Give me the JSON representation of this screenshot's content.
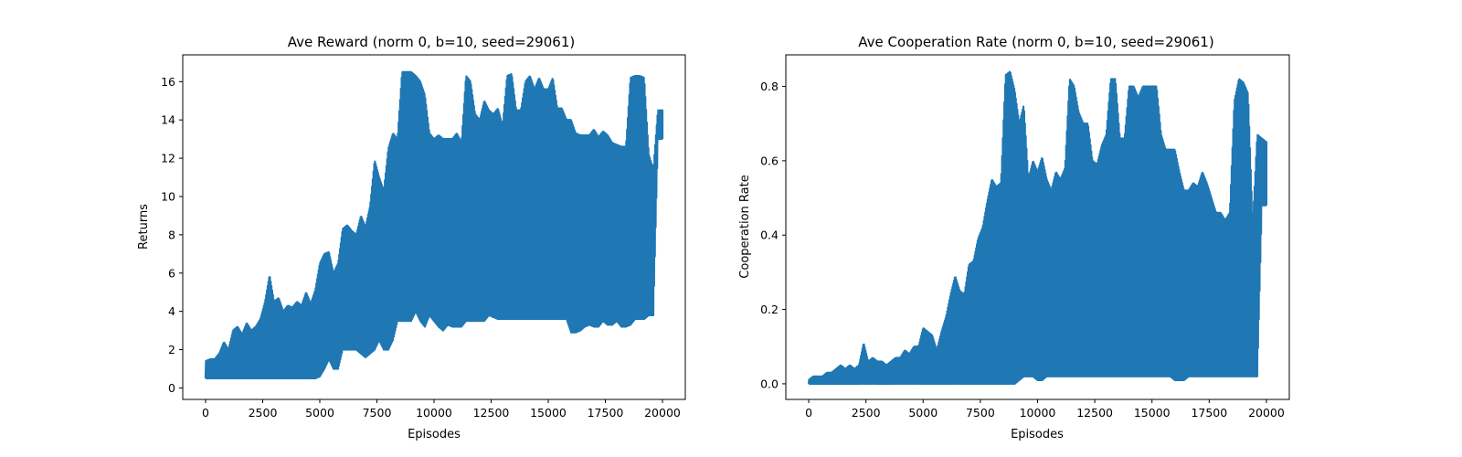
{
  "chart_data": [
    {
      "type": "line",
      "title": "Ave Reward (norm 0, b=10, seed=29061)",
      "xlabel": "Episodes",
      "ylabel": "Returns",
      "xlim": [
        -1000,
        21000
      ],
      "ylim": [
        -0.6,
        17.4
      ],
      "xticks": [
        0,
        2500,
        5000,
        7500,
        10000,
        12500,
        15000,
        17500,
        20000
      ],
      "yticks": [
        0,
        2,
        4,
        6,
        8,
        10,
        12,
        14,
        16
      ],
      "ytick_labels": [
        "0",
        "2",
        "4",
        "6",
        "8",
        "10",
        "12",
        "14",
        "16"
      ],
      "grid": false,
      "color": "#1f77b4",
      "series": [
        {
          "x": [
            0,
            200,
            400,
            600,
            800,
            1000,
            1200,
            1400,
            1600,
            1800,
            2000,
            2200,
            2400,
            2600,
            2800,
            3000,
            3200,
            3400,
            3600,
            3800,
            4000,
            4200,
            4400,
            4600,
            4800,
            5000,
            5200,
            5400,
            5600,
            5800,
            6000,
            6200,
            6400,
            6600,
            6800,
            7000,
            7200,
            7400,
            7600,
            7800,
            8000,
            8200,
            8400,
            8600,
            8800,
            9000,
            9200,
            9400,
            9600,
            9800,
            10000,
            10200,
            10400,
            10600,
            10800,
            11000,
            11200,
            11400,
            11600,
            11800,
            12000,
            12200,
            12400,
            12600,
            12800,
            13000,
            13200,
            13400,
            13600,
            13800,
            14000,
            14200,
            14400,
            14600,
            14800,
            15000,
            15200,
            15400,
            15600,
            15800,
            16000,
            16200,
            16400,
            16600,
            16800,
            17000,
            17200,
            17400,
            17600,
            17800,
            18000,
            18200,
            18400,
            18600,
            18800,
            19000,
            19200,
            19400,
            19600,
            19800,
            20000
          ],
          "y_min": [
            0.5,
            0.5,
            0.5,
            0.5,
            0.5,
            0.5,
            0.5,
            0.5,
            0.5,
            0.5,
            0.5,
            0.5,
            0.5,
            0.5,
            0.5,
            0.5,
            0.5,
            0.5,
            0.5,
            0.5,
            0.5,
            0.5,
            0.5,
            0.5,
            0.5,
            0.6,
            1.0,
            1.5,
            1.0,
            1.0,
            2.0,
            2.0,
            2.0,
            2.0,
            1.8,
            1.6,
            1.8,
            2.0,
            2.5,
            2.0,
            2.0,
            2.5,
            3.5,
            3.5,
            3.5,
            3.5,
            4.0,
            3.5,
            3.2,
            3.8,
            3.5,
            3.2,
            3.0,
            3.3,
            3.2,
            3.2,
            3.2,
            3.5,
            3.5,
            3.5,
            3.5,
            3.5,
            3.8,
            3.7,
            3.6,
            3.6,
            3.6,
            3.6,
            3.6,
            3.6,
            3.6,
            3.6,
            3.6,
            3.6,
            3.6,
            3.6,
            3.6,
            3.6,
            3.6,
            3.6,
            2.9,
            2.9,
            3.0,
            3.2,
            3.3,
            3.2,
            3.2,
            3.5,
            3.3,
            3.3,
            3.5,
            3.2,
            3.2,
            3.3,
            3.6,
            3.6,
            3.6,
            3.8,
            3.8,
            13.0,
            13.0
          ],
          "y_max": [
            1.4,
            1.5,
            1.5,
            1.8,
            2.4,
            2.0,
            3.0,
            3.2,
            2.8,
            3.4,
            3.0,
            3.2,
            3.6,
            4.5,
            5.9,
            4.5,
            4.7,
            4.0,
            4.3,
            4.2,
            4.5,
            4.3,
            5.0,
            4.4,
            5.1,
            6.5,
            7.0,
            7.1,
            6.0,
            6.5,
            8.3,
            8.5,
            8.2,
            8.0,
            9.0,
            8.4,
            9.5,
            11.9,
            11.0,
            10.3,
            12.5,
            13.3,
            13.0,
            16.5,
            16.5,
            16.5,
            16.3,
            16.0,
            15.3,
            13.3,
            13.0,
            13.2,
            13.0,
            13.0,
            13.0,
            13.3,
            12.8,
            16.3,
            16.0,
            14.3,
            14.0,
            15.0,
            14.5,
            14.3,
            14.6,
            13.7,
            16.3,
            16.4,
            14.5,
            14.5,
            16.0,
            16.3,
            15.6,
            16.2,
            15.6,
            15.6,
            16.2,
            14.6,
            14.6,
            14.0,
            14.0,
            13.3,
            13.2,
            13.2,
            13.2,
            13.5,
            13.1,
            13.4,
            13.2,
            12.8,
            12.7,
            12.6,
            12.6,
            16.2,
            16.3,
            16.3,
            16.2,
            12.2,
            11.4,
            14.5,
            14.5
          ]
        }
      ]
    },
    {
      "type": "line",
      "title": "Ave Cooperation Rate (norm 0, b=10, seed=29061)",
      "xlabel": "Episodes",
      "ylabel": "Cooperation Rate",
      "xlim": [
        -1000,
        21000
      ],
      "ylim": [
        -0.042,
        0.885
      ],
      "xticks": [
        0,
        2500,
        5000,
        7500,
        10000,
        12500,
        15000,
        17500,
        20000
      ],
      "yticks": [
        0.0,
        0.2,
        0.4,
        0.6,
        0.8
      ],
      "ytick_labels": [
        "0.0",
        "0.2",
        "0.4",
        "0.6",
        "0.8"
      ],
      "grid": false,
      "color": "#1f77b4",
      "series": [
        {
          "x": [
            0,
            200,
            400,
            600,
            800,
            1000,
            1200,
            1400,
            1600,
            1800,
            2000,
            2200,
            2400,
            2600,
            2800,
            3000,
            3200,
            3400,
            3600,
            3800,
            4000,
            4200,
            4400,
            4600,
            4800,
            5000,
            5200,
            5400,
            5600,
            5800,
            6000,
            6200,
            6400,
            6600,
            6800,
            7000,
            7200,
            7400,
            7600,
            7800,
            8000,
            8200,
            8400,
            8600,
            8800,
            9000,
            9200,
            9400,
            9600,
            9800,
            10000,
            10200,
            10400,
            10600,
            10800,
            11000,
            11200,
            11400,
            11600,
            11800,
            12000,
            12200,
            12400,
            12600,
            12800,
            13000,
            13200,
            13400,
            13600,
            13800,
            14000,
            14200,
            14400,
            14600,
            14800,
            15000,
            15200,
            15400,
            15600,
            15800,
            16000,
            16200,
            16400,
            16600,
            16800,
            17000,
            17200,
            17400,
            17600,
            17800,
            18000,
            18200,
            18400,
            18600,
            18800,
            19000,
            19200,
            19400,
            19600,
            19800,
            20000
          ],
          "y_min": [
            0.0,
            0.0,
            0.0,
            0.0,
            0.0,
            0.0,
            0.0,
            0.0,
            0.0,
            0.0,
            0.0,
            0.0,
            0.0,
            0.0,
            0.0,
            0.0,
            0.0,
            0.0,
            0.0,
            0.0,
            0.0,
            0.0,
            0.0,
            0.0,
            0.0,
            0.0,
            0.0,
            0.0,
            0.0,
            0.0,
            0.0,
            0.0,
            0.0,
            0.0,
            0.0,
            0.0,
            0.0,
            0.0,
            0.0,
            0.0,
            0.0,
            0.0,
            0.0,
            0.0,
            0.0,
            0.0,
            0.01,
            0.02,
            0.02,
            0.02,
            0.01,
            0.01,
            0.02,
            0.02,
            0.02,
            0.02,
            0.02,
            0.02,
            0.02,
            0.02,
            0.02,
            0.02,
            0.02,
            0.02,
            0.02,
            0.02,
            0.02,
            0.02,
            0.02,
            0.02,
            0.02,
            0.02,
            0.02,
            0.02,
            0.02,
            0.02,
            0.02,
            0.02,
            0.02,
            0.02,
            0.01,
            0.01,
            0.01,
            0.02,
            0.02,
            0.02,
            0.02,
            0.02,
            0.02,
            0.02,
            0.02,
            0.02,
            0.02,
            0.02,
            0.02,
            0.02,
            0.02,
            0.02,
            0.02,
            0.48,
            0.48
          ],
          "y_max": [
            0.01,
            0.02,
            0.02,
            0.02,
            0.03,
            0.03,
            0.04,
            0.05,
            0.04,
            0.05,
            0.04,
            0.05,
            0.11,
            0.06,
            0.07,
            0.06,
            0.06,
            0.05,
            0.06,
            0.07,
            0.07,
            0.09,
            0.08,
            0.1,
            0.1,
            0.15,
            0.14,
            0.13,
            0.09,
            0.14,
            0.18,
            0.24,
            0.29,
            0.25,
            0.24,
            0.32,
            0.33,
            0.39,
            0.42,
            0.49,
            0.55,
            0.53,
            0.54,
            0.83,
            0.84,
            0.79,
            0.7,
            0.75,
            0.55,
            0.6,
            0.57,
            0.61,
            0.55,
            0.52,
            0.57,
            0.55,
            0.58,
            0.82,
            0.8,
            0.73,
            0.7,
            0.7,
            0.6,
            0.59,
            0.64,
            0.67,
            0.82,
            0.82,
            0.66,
            0.66,
            0.8,
            0.8,
            0.77,
            0.8,
            0.8,
            0.8,
            0.8,
            0.67,
            0.63,
            0.63,
            0.63,
            0.57,
            0.52,
            0.52,
            0.54,
            0.53,
            0.57,
            0.54,
            0.5,
            0.46,
            0.46,
            0.44,
            0.46,
            0.76,
            0.82,
            0.81,
            0.78,
            0.43,
            0.67,
            0.66,
            0.65
          ]
        }
      ]
    }
  ]
}
